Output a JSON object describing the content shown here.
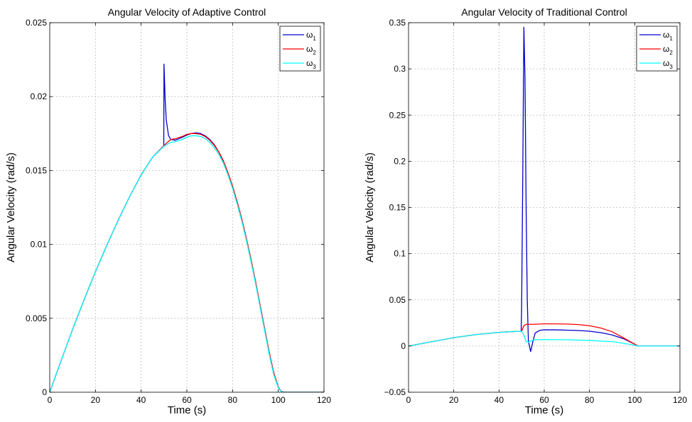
{
  "chart_data": [
    {
      "type": "line",
      "title": "Angular Velocity of Adaptive Control",
      "xlabel": "Time (s)",
      "ylabel": "Angular Velocity (rad/s)",
      "xlim": [
        0,
        120
      ],
      "ylim": [
        0,
        0.025
      ],
      "xticks": [
        0,
        20,
        40,
        60,
        80,
        100,
        120
      ],
      "xtick_labels": [
        "0",
        "20",
        "40",
        "60",
        "80",
        "100",
        "120"
      ],
      "yticks": [
        0,
        0.005,
        0.01,
        0.015,
        0.02,
        0.025
      ],
      "ytick_labels": [
        "0",
        "0.005",
        "0.01",
        "0.015",
        "0.02",
        "0.025"
      ],
      "grid": true,
      "legend_position": "top-right",
      "series": [
        {
          "name": "ω1",
          "label_base": "ω",
          "label_sub": "1",
          "color": "#0000cc",
          "x": [
            0,
            5,
            10,
            15,
            20,
            25,
            30,
            35,
            40,
            45,
            49.9,
            50,
            50.5,
            51,
            52,
            53,
            55,
            58,
            60,
            62,
            64,
            66,
            68,
            70,
            72,
            74,
            76,
            78,
            80,
            82,
            84,
            86,
            88,
            90,
            92,
            94,
            96,
            98,
            100,
            101,
            102,
            103,
            104,
            106,
            110,
            120
          ],
          "y": [
            0,
            0.00215,
            0.00425,
            0.00625,
            0.00815,
            0.00995,
            0.01165,
            0.01325,
            0.0147,
            0.0159,
            0.01665,
            0.0222,
            0.0198,
            0.0184,
            0.01735,
            0.0171,
            0.01705,
            0.01725,
            0.0174,
            0.0175,
            0.01755,
            0.0175,
            0.01735,
            0.0171,
            0.01675,
            0.01625,
            0.0156,
            0.0148,
            0.0139,
            0.01285,
            0.0117,
            0.0104,
            0.009,
            0.0075,
            0.0059,
            0.0043,
            0.0027,
            0.0013,
            0.00035,
            0.0001,
            2e-05,
            0,
            0,
            0,
            0,
            0
          ]
        },
        {
          "name": "ω2",
          "label_base": "ω",
          "label_sub": "2",
          "color": "#ff0000",
          "x": [
            0,
            5,
            10,
            15,
            20,
            25,
            30,
            35,
            40,
            45,
            50,
            53,
            55,
            58,
            60,
            62,
            64,
            66,
            68,
            70,
            72,
            74,
            76,
            78,
            80,
            82,
            84,
            86,
            88,
            90,
            92,
            94,
            96,
            98,
            100,
            101,
            102,
            103,
            104,
            106,
            110,
            120
          ],
          "y": [
            0,
            0.00215,
            0.00425,
            0.00625,
            0.00815,
            0.00995,
            0.01165,
            0.01325,
            0.0147,
            0.0159,
            0.0167,
            0.0171,
            0.01715,
            0.0173,
            0.01745,
            0.0175,
            0.0175,
            0.01745,
            0.0173,
            0.01705,
            0.0167,
            0.01625,
            0.01565,
            0.01485,
            0.01395,
            0.0129,
            0.01175,
            0.01045,
            0.00905,
            0.00755,
            0.00595,
            0.00435,
            0.00275,
            0.00135,
            0.00035,
            0.0001,
            2e-05,
            0,
            0,
            0,
            0,
            0
          ]
        },
        {
          "name": "ω3",
          "label_base": "ω",
          "label_sub": "3",
          "color": "#00ffff",
          "x": [
            0,
            5,
            10,
            15,
            20,
            25,
            30,
            35,
            40,
            45,
            50,
            53,
            55,
            58,
            60,
            62,
            64,
            66,
            68,
            70,
            72,
            74,
            76,
            78,
            80,
            82,
            84,
            86,
            88,
            90,
            92,
            94,
            96,
            98,
            100,
            101,
            102,
            103,
            104,
            106,
            110,
            120
          ],
          "y": [
            0,
            0.00215,
            0.00425,
            0.00625,
            0.00815,
            0.00995,
            0.01165,
            0.01325,
            0.0147,
            0.0159,
            0.01665,
            0.0169,
            0.01695,
            0.0171,
            0.01725,
            0.01735,
            0.01735,
            0.0173,
            0.01715,
            0.0169,
            0.01655,
            0.0161,
            0.0155,
            0.0147,
            0.0138,
            0.01275,
            0.0116,
            0.0103,
            0.0089,
            0.0074,
            0.0058,
            0.0042,
            0.0026,
            0.0012,
            0.0003,
            8e-05,
            1e-05,
            0,
            0,
            0,
            0,
            0
          ]
        }
      ]
    },
    {
      "type": "line",
      "title": "Angular Velocity of Traditional Control",
      "xlabel": "Time (s)",
      "ylabel": "Angular Velocity (rad/s)",
      "xlim": [
        0,
        120
      ],
      "ylim": [
        -0.05,
        0.35
      ],
      "xticks": [
        0,
        20,
        40,
        60,
        80,
        100,
        120
      ],
      "xtick_labels": [
        "0",
        "20",
        "40",
        "60",
        "80",
        "100",
        "120"
      ],
      "yticks": [
        -0.05,
        0,
        0.05,
        0.1,
        0.15,
        0.2,
        0.25,
        0.3,
        0.35
      ],
      "ytick_labels": [
        "−0.05",
        "0",
        "0.05",
        "0.1",
        "0.15",
        "0.2",
        "0.25",
        "0.3",
        "0.35"
      ],
      "grid": true,
      "legend_position": "top-right",
      "series": [
        {
          "name": "ω1",
          "label_base": "ω",
          "label_sub": "1",
          "color": "#0000cc",
          "x": [
            0,
            10,
            20,
            30,
            40,
            45,
            49.8,
            50,
            50.5,
            51,
            51.5,
            52,
            52.5,
            53,
            54,
            55,
            56,
            58,
            60,
            65,
            70,
            75,
            80,
            85,
            90,
            95,
            100,
            101,
            102,
            105,
            110,
            120
          ],
          "y": [
            0,
            0.0045,
            0.009,
            0.0125,
            0.0148,
            0.0155,
            0.016,
            0.04,
            0.18,
            0.345,
            0.29,
            0.15,
            0.05,
            0.005,
            -0.006,
            0.005,
            0.014,
            0.017,
            0.0175,
            0.0175,
            0.0172,
            0.0168,
            0.016,
            0.0145,
            0.012,
            0.008,
            0.002,
            0.0005,
            0,
            0,
            0,
            0
          ]
        },
        {
          "name": "ω2",
          "label_base": "ω",
          "label_sub": "2",
          "color": "#ff0000",
          "x": [
            0,
            10,
            20,
            30,
            40,
            45,
            50,
            51,
            52,
            53,
            55,
            60,
            65,
            70,
            75,
            80,
            85,
            90,
            95,
            100,
            101,
            102,
            105,
            110,
            120
          ],
          "y": [
            0,
            0.0045,
            0.009,
            0.0125,
            0.0148,
            0.0155,
            0.016,
            0.022,
            0.0235,
            0.0235,
            0.0235,
            0.024,
            0.024,
            0.0238,
            0.0232,
            0.022,
            0.0195,
            0.0155,
            0.009,
            0.002,
            0.0005,
            0,
            0,
            0,
            0
          ]
        },
        {
          "name": "ω3",
          "label_base": "ω",
          "label_sub": "3",
          "color": "#00ffff",
          "x": [
            0,
            10,
            20,
            30,
            40,
            45,
            50,
            51,
            52,
            53,
            54,
            56,
            60,
            70,
            80,
            90,
            95,
            100,
            101,
            102,
            105,
            110,
            120
          ],
          "y": [
            0,
            0.0045,
            0.009,
            0.0125,
            0.0148,
            0.0155,
            0.016,
            0.012,
            0.005,
            0.004,
            0.0055,
            0.0068,
            0.007,
            0.0068,
            0.006,
            0.0048,
            0.003,
            0.0008,
            0.0002,
            0,
            0,
            0,
            0
          ]
        }
      ]
    }
  ]
}
